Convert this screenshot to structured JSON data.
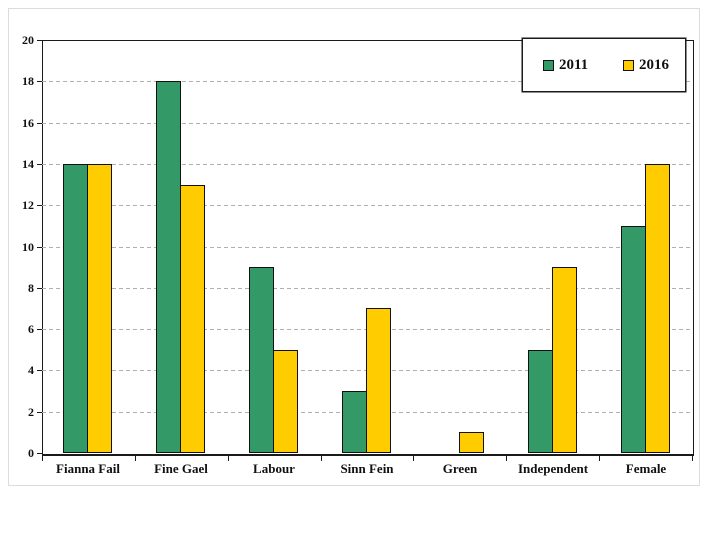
{
  "chart_data": {
    "type": "bar",
    "title": "",
    "xlabel": "",
    "ylabel": "",
    "categories": [
      "Fianna Fail",
      "Fine Gael",
      "Labour",
      "Sinn Fein",
      "Green",
      "Independent",
      "Female"
    ],
    "series": [
      {
        "name": "2011",
        "color": "#339966",
        "values": [
          14,
          18,
          9,
          3,
          0,
          5,
          11
        ]
      },
      {
        "name": "2016",
        "color": "#FFCC00",
        "values": [
          14,
          13,
          5,
          7,
          1,
          9,
          14
        ]
      }
    ],
    "ylim": [
      0,
      20
    ],
    "ytick_step": 2,
    "ytick_labels": [
      "0",
      "2",
      "4",
      "6",
      "8",
      "10",
      "12",
      "14",
      "16",
      "18",
      "20"
    ],
    "grid": "horizontal-dashed",
    "legend_position": "top-right"
  },
  "legend": {
    "items": [
      {
        "label": "2011",
        "color": "#339966"
      },
      {
        "label": "2016",
        "color": "#FFCC00"
      }
    ]
  },
  "colors": {
    "series_2011": "#339966",
    "series_2016": "#FFCC00",
    "bar_border": "#111111",
    "gridline": "#b0b0b0",
    "axis": "#1a1a1a",
    "frame_border": "#dcdcdc",
    "background": "#ffffff"
  }
}
